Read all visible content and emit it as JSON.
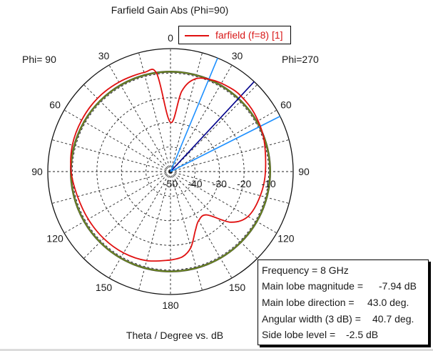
{
  "chart_data": {
    "type": "polar",
    "title": "Farfield Gain Abs (Phi=90)",
    "xlabel": "Theta / Degree vs. dB",
    "side_labels": {
      "left": "Phi= 90",
      "right": "Phi=270"
    },
    "angle_ticks": [
      {
        "angle": 0,
        "label": "0"
      },
      {
        "angle": 30,
        "label": "30"
      },
      {
        "angle": 60,
        "label": "60"
      },
      {
        "angle": 90,
        "label": "90"
      },
      {
        "angle": 120,
        "label": "120"
      },
      {
        "angle": 150,
        "label": "150"
      },
      {
        "angle": 180,
        "label": "180"
      },
      {
        "angle": -150,
        "label": "150"
      },
      {
        "angle": -120,
        "label": "120"
      },
      {
        "angle": -90,
        "label": "90"
      },
      {
        "angle": -60,
        "label": "60"
      },
      {
        "angle": -30,
        "label": "30"
      }
    ],
    "radial_ticks": [
      "-50",
      "-40",
      "-30",
      "-20",
      "-10"
    ],
    "radial_range_db": [
      -50,
      0
    ],
    "grid": true,
    "series": [
      {
        "name": "farfield (f=8) [1]",
        "color": "#e01010",
        "theta_deg": [
          -180,
          -165,
          -150,
          -135,
          -120,
          -105,
          -90,
          -75,
          -60,
          -45,
          -30,
          -15,
          -8,
          0,
          8,
          15,
          25,
          35,
          43,
          55,
          70,
          90,
          105,
          120,
          130,
          140,
          150,
          157,
          165,
          172,
          180
        ],
        "gain_db": [
          -14,
          -12.5,
          -11.8,
          -11.5,
          -11.3,
          -10.8,
          -9.5,
          -8.6,
          -8.2,
          -7.9,
          -8.0,
          -8.3,
          -9.8,
          -30,
          -17,
          -11,
          -9,
          -8.2,
          -7.94,
          -8.4,
          -9.6,
          -11.3,
          -12.1,
          -13.5,
          -18,
          -27,
          -27,
          -24,
          -18,
          -15,
          -14
        ]
      },
      {
        "name": "reference circle",
        "color": "#6f8d1a",
        "gain_db_constant": -9.4
      }
    ],
    "direction_lines": [
      {
        "name": "main lobe",
        "theta_deg": 43,
        "color": "#00008b"
      },
      {
        "name": "3 dB limit low",
        "theta_deg": 22.6,
        "color": "#1e90ff"
      },
      {
        "name": "3 dB limit high",
        "theta_deg": 63.3,
        "color": "#1e90ff"
      }
    ],
    "info": {
      "frequency": {
        "label": "Frequency = 8 GHz",
        "value": ""
      },
      "magnitude": {
        "label": "Main lobe magnitude =",
        "value": "-7.94 dB"
      },
      "direction": {
        "label": "Main lobe direction =",
        "value": "43.0 deg."
      },
      "width": {
        "label": "Angular width (3 dB) =",
        "value": "40.7 deg."
      },
      "sidelobe": {
        "label": "Side lobe level =",
        "value": "-2.5 dB"
      }
    }
  }
}
